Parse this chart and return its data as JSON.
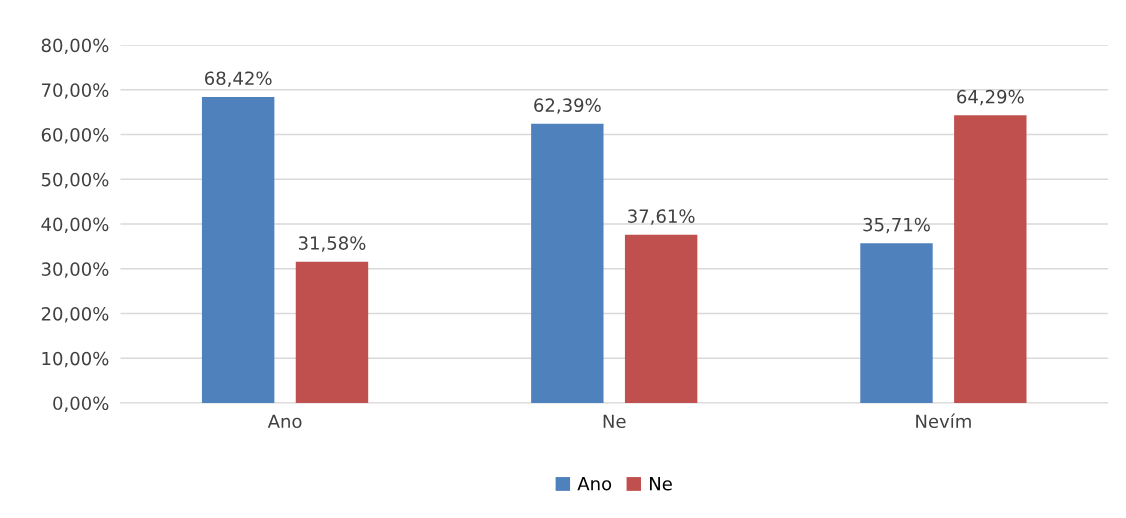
{
  "chart_data": {
    "type": "bar",
    "categories": [
      "Ano",
      "Ne",
      "Nevím"
    ],
    "series": [
      {
        "name": "Ano",
        "color": "#4f81bd",
        "values": [
          68.42,
          62.39,
          35.71
        ],
        "value_labels": [
          "68,42%",
          "62,39%",
          "35,71%"
        ]
      },
      {
        "name": "Ne",
        "color": "#c0504d",
        "values": [
          31.58,
          37.61,
          64.29
        ],
        "value_labels": [
          "31,58%",
          "37,61%",
          "64,29%"
        ]
      }
    ],
    "ylim": [
      0,
      80
    ],
    "yticks": [
      {
        "value": 0,
        "label": "0,00%"
      },
      {
        "value": 10,
        "label": "10,00%"
      },
      {
        "value": 20,
        "label": "20,00%"
      },
      {
        "value": 30,
        "label": "30,00%"
      },
      {
        "value": 40,
        "label": "40,00%"
      },
      {
        "value": 50,
        "label": "50,00%"
      },
      {
        "value": 60,
        "label": "60,00%"
      },
      {
        "value": 70,
        "label": "70,00%"
      },
      {
        "value": 80,
        "label": "80,00%"
      }
    ],
    "grid": "y",
    "legend": "bottom"
  }
}
